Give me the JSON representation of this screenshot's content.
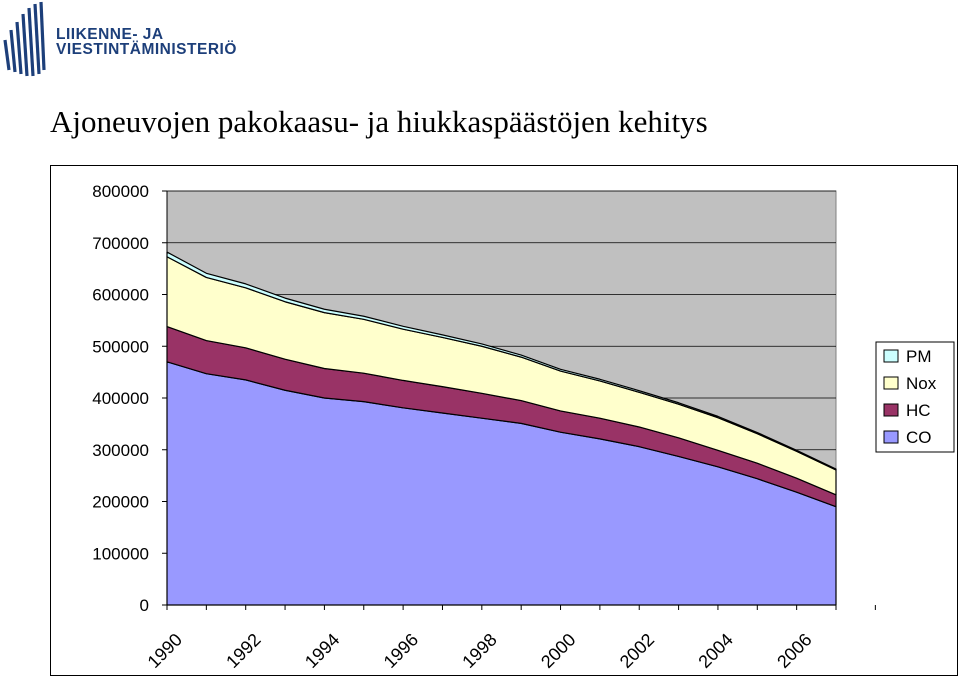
{
  "logo": {
    "line1": "LIIKENNE- JA",
    "line2": "VIESTINTÄMINISTERIÖ",
    "color": "#1d3f7a"
  },
  "title": "Ajoneuvojen pakokaasu- ja hiukkaspäästöjen kehitys",
  "chart_data": {
    "type": "area",
    "stacked": true,
    "title": "Ajoneuvojen pakokaasu- ja hiukkaspäästöjen kehitys",
    "xlabel": "",
    "ylabel": "",
    "x": [
      1990,
      1991,
      1992,
      1993,
      1994,
      1995,
      1996,
      1997,
      1998,
      1999,
      2000,
      2001,
      2002,
      2003,
      2004,
      2005,
      2006,
      2007
    ],
    "x_tick_labels": [
      "1990",
      "1992",
      "1994",
      "1996",
      "1998",
      "2000",
      "2002",
      "2004",
      "2006"
    ],
    "y_tick_labels": [
      "0",
      "100000",
      "200000",
      "300000",
      "400000",
      "500000",
      "600000",
      "700000",
      "800000"
    ],
    "ylim": [
      0,
      800000
    ],
    "series": [
      {
        "name": "CO",
        "color": "#9999ff",
        "values": [
          470000,
          447000,
          435000,
          415000,
          400000,
          393000,
          381000,
          371000,
          361000,
          351000,
          334000,
          321000,
          306000,
          287000,
          267000,
          244000,
          218000,
          190000
        ]
      },
      {
        "name": "HC",
        "color": "#993366",
        "values": [
          68000,
          64000,
          62000,
          60000,
          57000,
          55000,
          53000,
          51000,
          48000,
          44000,
          41000,
          40000,
          38000,
          36000,
          32000,
          30000,
          27000,
          23000
        ]
      },
      {
        "name": "Nox",
        "color": "#ffffcc",
        "values": [
          135000,
          122000,
          116000,
          111000,
          108000,
          104000,
          99000,
          95000,
          91000,
          84000,
          77000,
          72000,
          67000,
          65000,
          63000,
          57000,
          52000,
          48000
        ]
      },
      {
        "name": "PM",
        "color": "#ccffff",
        "values": [
          9000,
          8000,
          7500,
          7000,
          6500,
          6000,
          5500,
          5000,
          4500,
          4000,
          3500,
          3200,
          3000,
          2800,
          2500,
          2300,
          2000,
          1800
        ]
      }
    ],
    "grid": true,
    "plot_background": "#c0c0c0",
    "legend_position": "right"
  }
}
